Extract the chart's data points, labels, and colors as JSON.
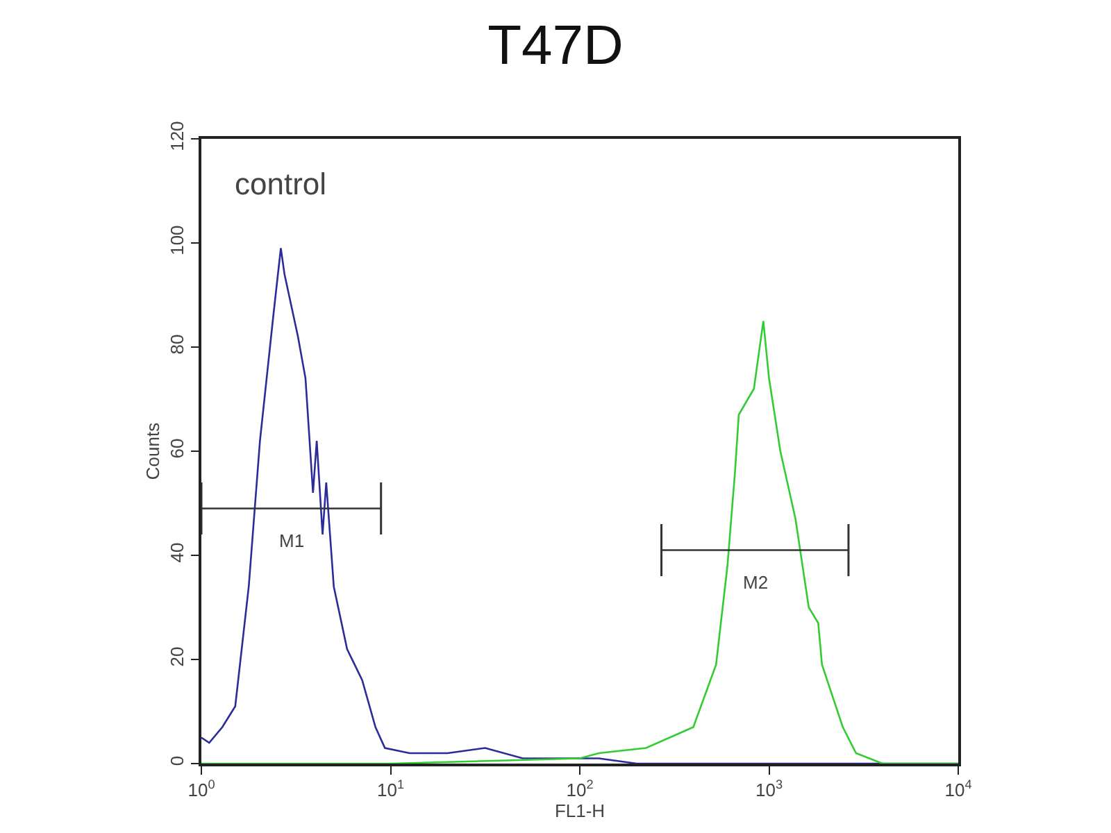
{
  "chart_data": {
    "type": "line",
    "title": "T47D",
    "xlabel": "FL1-H",
    "ylabel": "Counts",
    "log": "x",
    "xlim": [
      1,
      10000
    ],
    "ylim": [
      0,
      120
    ],
    "xticks": [
      {
        "value": 1,
        "label": "10$^{0}$"
      },
      {
        "value": 10,
        "label": "10$^{1}$"
      },
      {
        "value": 100,
        "label": "10$^{2}$"
      },
      {
        "value": 1000,
        "label": "10$^{3}$"
      },
      {
        "value": 10000,
        "label": "10$^{4}$"
      }
    ],
    "yticks": [
      0,
      20,
      40,
      60,
      80,
      100,
      120
    ],
    "marker": "none",
    "line_style": "solid",
    "annotations": [
      "control",
      "M1",
      "M2"
    ],
    "series": [
      {
        "color": "#2b2b9a",
        "x": [
          1,
          1.1,
          1.29,
          1.51,
          1.78,
          2.04,
          2.4,
          2.63,
          2.75,
          3.24,
          3.55,
          3.89,
          4.07,
          4.37,
          4.57,
          5.01,
          5.89,
          7.08,
          8.32,
          9.33,
          12.6,
          20,
          31.6,
          50,
          79,
          126,
          200,
          398,
          1000,
          3162,
          10000
        ],
        "values": [
          5,
          4,
          7,
          11,
          34,
          62,
          86,
          99,
          94,
          82,
          74,
          52,
          62,
          44,
          54,
          34,
          22,
          16,
          7,
          3,
          2,
          2,
          3,
          1,
          1,
          1,
          0,
          0,
          0,
          0,
          0
        ]
      },
      {
        "color": "#33cc33",
        "x": [
          1,
          10,
          100,
          126,
          224,
          398,
          525,
          603,
          661,
          692,
          832,
          933,
          1000,
          1148,
          1380,
          1622,
          1820,
          1905,
          2455,
          2884,
          3981,
          10000
        ],
        "values": [
          0,
          0,
          1,
          2,
          3,
          7,
          19,
          38,
          56,
          67,
          72,
          85,
          74,
          60,
          47,
          30,
          27,
          19,
          7,
          2,
          0,
          0
        ]
      },
      {
        "color": "#333333",
        "x": [
          1,
          8.9
        ],
        "values": [
          49,
          49
        ],
        "errors": [
          5,
          5
        ]
      },
      {
        "color": "#333333",
        "x": [
          270,
          2630
        ],
        "values": [
          41,
          41
        ],
        "errors": [
          5,
          5
        ]
      }
    ]
  }
}
